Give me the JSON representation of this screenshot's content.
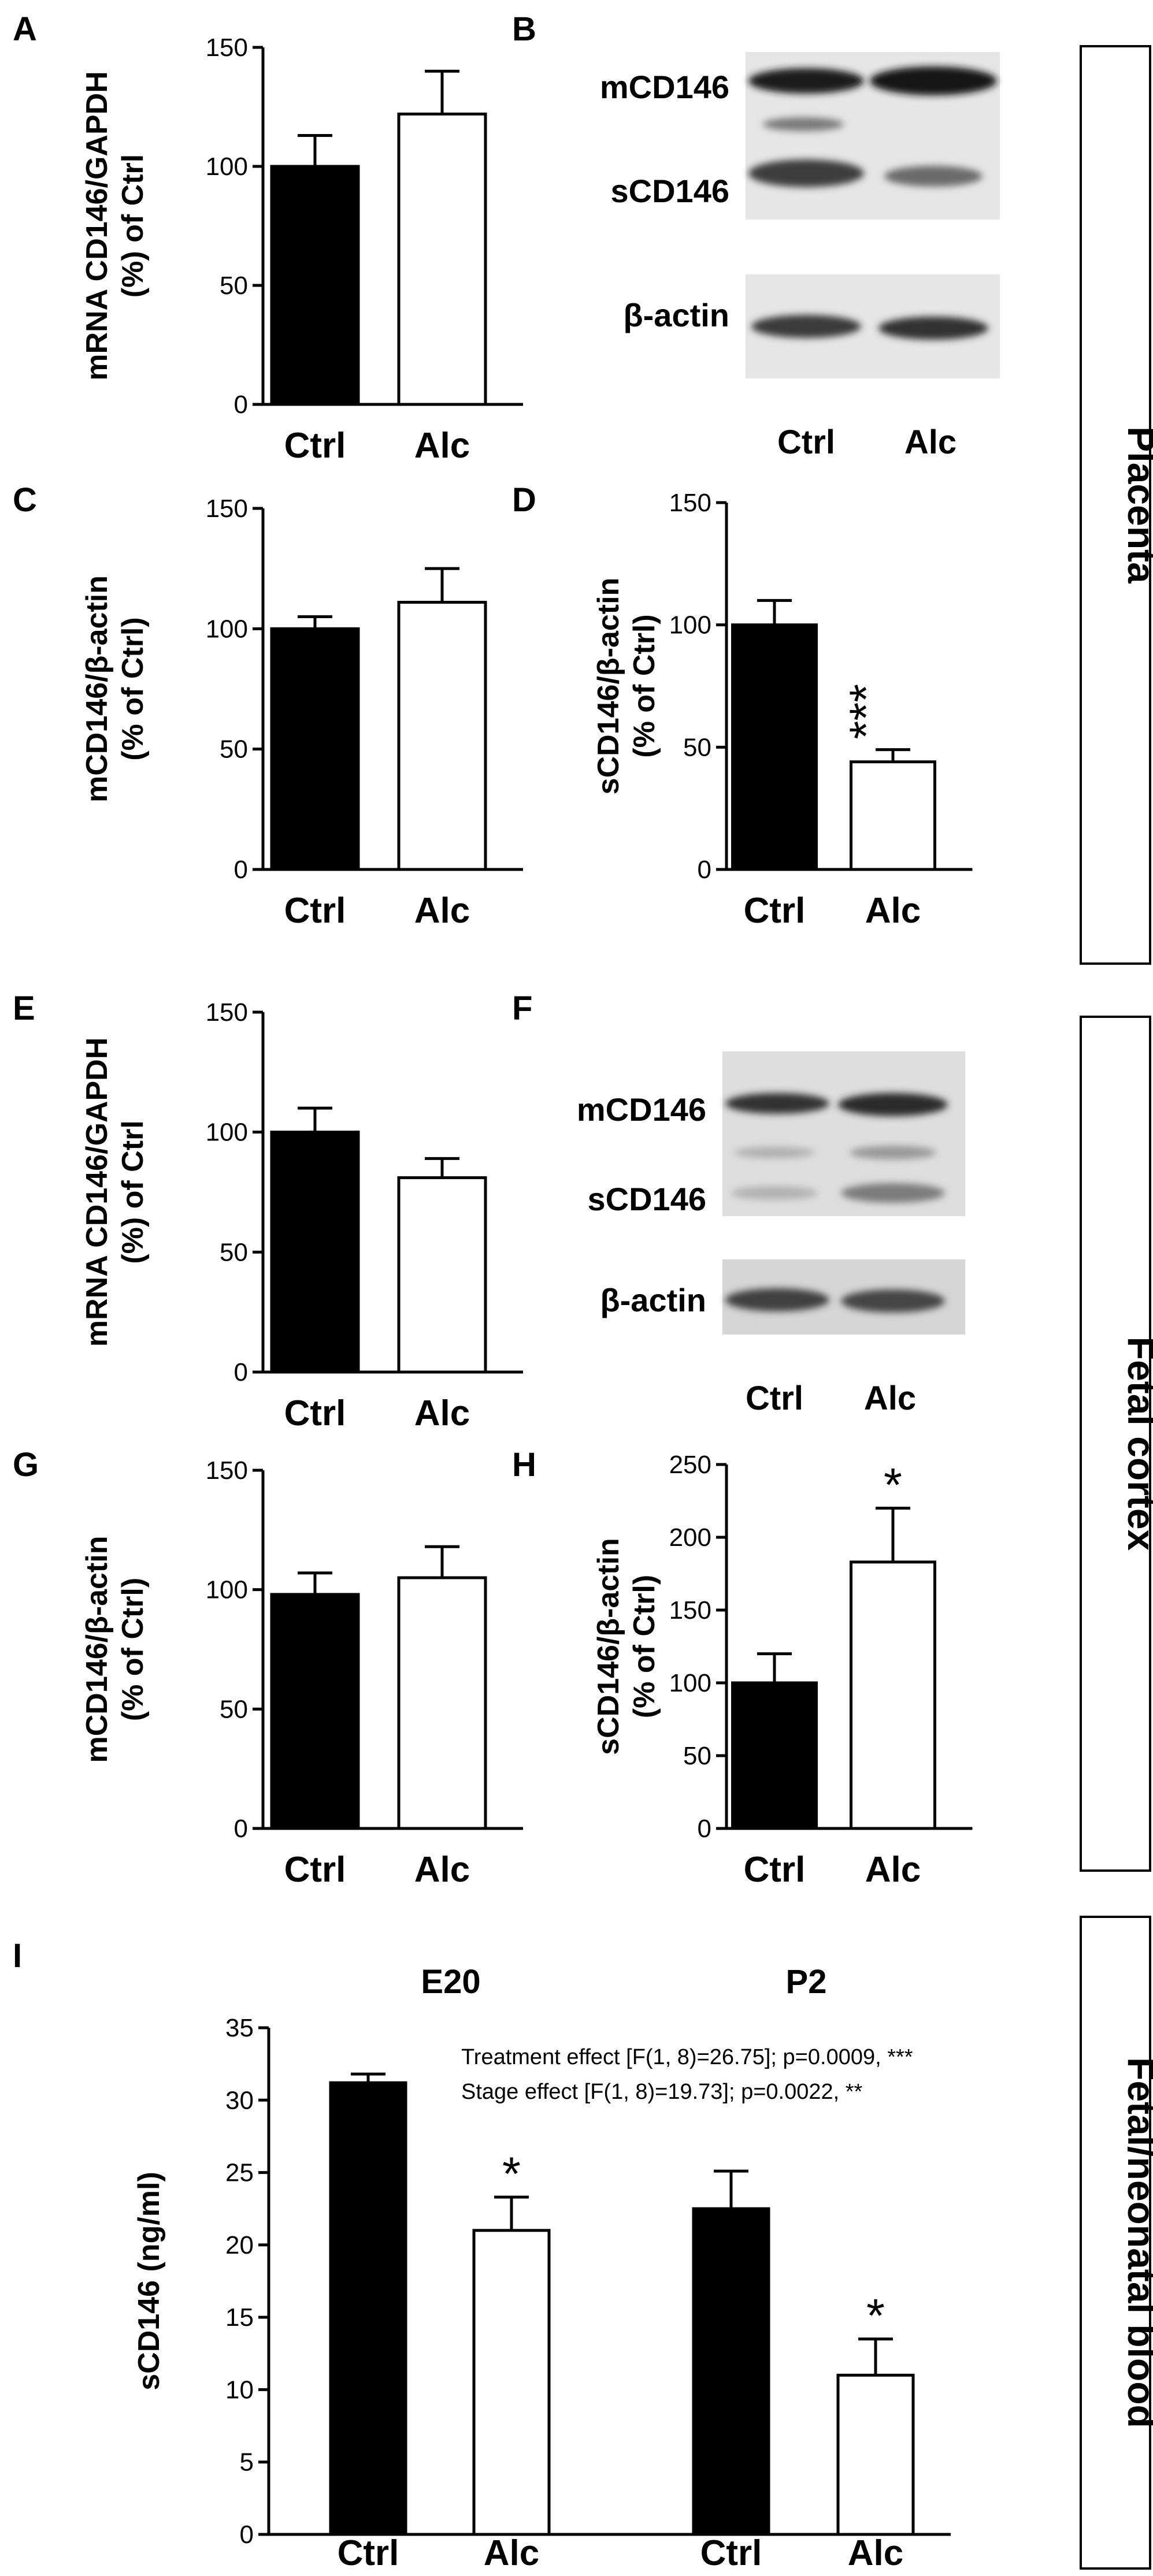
{
  "figure": {
    "side_labels": [
      "Placenta",
      "Fetal cortex",
      "Fetal/neonatal blood"
    ]
  },
  "chart_data": [
    {
      "panel": "A",
      "type": "bar",
      "ylabel": [
        "mRNA CD146/GAPDH",
        "(%) of Ctrl"
      ],
      "categories": [
        "Ctrl",
        "Alc"
      ],
      "values": [
        100,
        122
      ],
      "errors": [
        13,
        18
      ],
      "fills": [
        "#000000",
        "#ffffff"
      ],
      "ylim": [
        0,
        150
      ],
      "yticks": [
        0,
        50,
        100,
        150
      ],
      "sig": [
        "",
        ""
      ]
    },
    {
      "panel": "B",
      "type": "blot",
      "band_labels": [
        "mCD146",
        "sCD146",
        "β-actin"
      ],
      "lanes": [
        "Ctrl",
        "Alc"
      ]
    },
    {
      "panel": "C",
      "type": "bar",
      "ylabel": [
        "mCD146/β-actin",
        "(% of Ctrl)"
      ],
      "categories": [
        "Ctrl",
        "Alc"
      ],
      "values": [
        100,
        111
      ],
      "errors": [
        5,
        14
      ],
      "fills": [
        "#000000",
        "#ffffff"
      ],
      "ylim": [
        0,
        150
      ],
      "yticks": [
        0,
        50,
        100,
        150
      ],
      "sig": [
        "",
        ""
      ]
    },
    {
      "panel": "D",
      "type": "bar",
      "ylabel": [
        "sCD146/β-actin",
        "(% of Ctrl)"
      ],
      "categories": [
        "Ctrl",
        "Alc"
      ],
      "values": [
        100,
        44
      ],
      "errors": [
        10,
        5
      ],
      "fills": [
        "#000000",
        "#ffffff"
      ],
      "ylim": [
        0,
        150
      ],
      "yticks": [
        0,
        50,
        100,
        150
      ],
      "sig": [
        "",
        "***"
      ]
    },
    {
      "panel": "E",
      "type": "bar",
      "ylabel": [
        "mRNA CD146/GAPDH",
        "(%) of Ctrl"
      ],
      "categories": [
        "Ctrl",
        "Alc"
      ],
      "values": [
        100,
        81
      ],
      "errors": [
        10,
        8
      ],
      "fills": [
        "#000000",
        "#ffffff"
      ],
      "ylim": [
        0,
        150
      ],
      "yticks": [
        0,
        50,
        100,
        150
      ],
      "sig": [
        "",
        ""
      ]
    },
    {
      "panel": "F",
      "type": "blot",
      "band_labels": [
        "mCD146",
        "sCD146",
        "β-actin"
      ],
      "lanes": [
        "Ctrl",
        "Alc"
      ]
    },
    {
      "panel": "G",
      "type": "bar",
      "ylabel": [
        "mCD146/β-actin",
        "(% of Ctrl)"
      ],
      "categories": [
        "Ctrl",
        "Alc"
      ],
      "values": [
        98,
        105
      ],
      "errors": [
        9,
        13
      ],
      "fills": [
        "#000000",
        "#ffffff"
      ],
      "ylim": [
        0,
        150
      ],
      "yticks": [
        0,
        50,
        100,
        150
      ],
      "sig": [
        "",
        ""
      ]
    },
    {
      "panel": "H",
      "type": "bar",
      "ylabel": [
        "sCD146/β-actin",
        "(% of Ctrl)"
      ],
      "categories": [
        "Ctrl",
        "Alc"
      ],
      "values": [
        100,
        183
      ],
      "errors": [
        20,
        37
      ],
      "fills": [
        "#000000",
        "#ffffff"
      ],
      "ylim": [
        0,
        250
      ],
      "yticks": [
        0,
        50,
        100,
        150,
        200,
        250
      ],
      "sig": [
        "",
        "*"
      ]
    },
    {
      "panel": "I",
      "type": "bar",
      "ylabel": [
        "sCD146 (ng/ml)"
      ],
      "categories": [
        "Ctrl",
        "Alc",
        "Ctrl",
        "Alc"
      ],
      "values": [
        31.2,
        21.0,
        22.5,
        11.0
      ],
      "errors": [
        0.6,
        2.3,
        2.6,
        2.5
      ],
      "fills": [
        "#000000",
        "#ffffff",
        "#000000",
        "#ffffff"
      ],
      "ylim": [
        0,
        35
      ],
      "yticks": [
        0,
        5,
        10,
        15,
        20,
        25,
        30,
        35
      ],
      "sig": [
        "",
        "*",
        "",
        "*"
      ],
      "groups": [
        "E20",
        "P2"
      ],
      "annotations": [
        "Treatment effect [F(1, 8)=26.75]; p=0.0009, ***",
        "Stage effect [F(1, 8)=19.73]; p=0.0022, **"
      ]
    }
  ]
}
